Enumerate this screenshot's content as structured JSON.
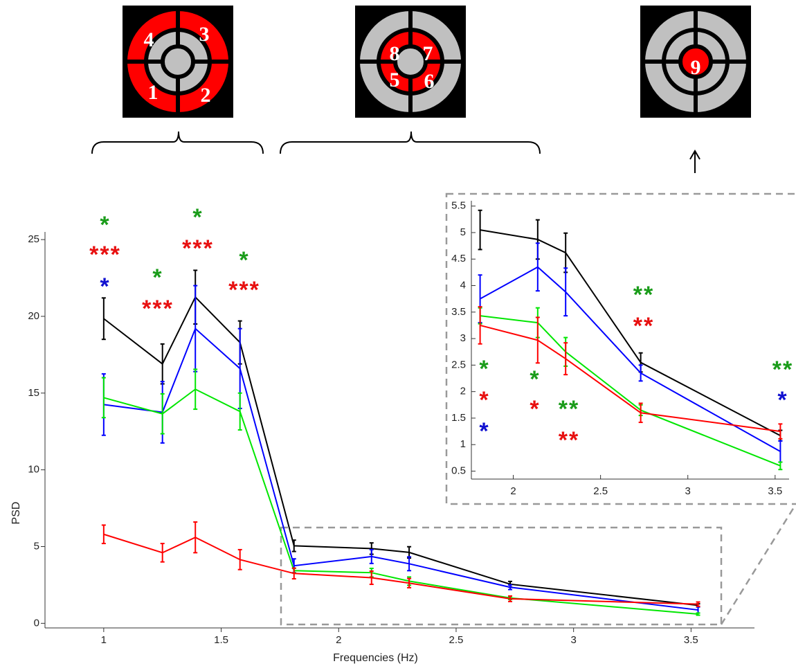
{
  "panels": [
    {
      "labels": [
        "4",
        "3",
        "1",
        "2"
      ]
    },
    {
      "labels": [
        "8",
        "7",
        "5",
        "6"
      ]
    },
    {
      "labels": [
        "9"
      ]
    }
  ],
  "chart_data": [
    {
      "type": "line",
      "xlabel": "Frequencies (Hz)",
      "ylabel": "PSD",
      "x": [
        1,
        1.25,
        1.39,
        1.58,
        1.81,
        2.14,
        2.3,
        2.73,
        3.53
      ],
      "xlim": [
        0.75,
        3.77
      ],
      "xticks": [
        1,
        1.5,
        2,
        2.5,
        3,
        3.5
      ],
      "ylim": [
        -0.3,
        25.5
      ],
      "yticks": [
        0,
        5,
        10,
        15,
        20,
        25
      ],
      "series": [
        {
          "color": "#000000",
          "values": [
            19.85,
            16.9,
            21.25,
            18.3,
            5.05,
            4.87,
            4.62,
            2.55,
            1.17
          ],
          "errors": [
            1.35,
            1.3,
            1.75,
            1.4,
            0.37,
            0.37,
            0.37,
            0.18,
            0.1
          ]
        },
        {
          "color": "#0000ff",
          "values": [
            14.25,
            13.75,
            19.2,
            16.6,
            3.75,
            4.35,
            3.88,
            2.35,
            0.87
          ],
          "errors": [
            2.0,
            2.0,
            2.8,
            2.6,
            0.45,
            0.45,
            0.45,
            0.15,
            0.2
          ]
        },
        {
          "color": "#00e600",
          "values": [
            14.7,
            13.65,
            15.25,
            13.8,
            3.43,
            3.3,
            2.75,
            1.65,
            0.6
          ],
          "errors": [
            1.3,
            1.3,
            1.3,
            1.2,
            0.15,
            0.28,
            0.27,
            0.1,
            0.07
          ]
        },
        {
          "color": "#ff0000",
          "values": [
            5.8,
            4.6,
            5.6,
            4.15,
            3.25,
            2.97,
            2.62,
            1.6,
            1.25
          ],
          "errors": [
            0.6,
            0.6,
            1.0,
            0.65,
            0.35,
            0.43,
            0.3,
            0.18,
            0.14
          ]
        }
      ],
      "annotations": [
        {
          "text": "*",
          "color": "#1a9c1a"
        },
        {
          "text": "***",
          "color": "#e81010"
        },
        {
          "text": "*",
          "color": "#1010d0"
        },
        {
          "text": "*",
          "color": "#1a9c1a"
        },
        {
          "text": "***",
          "color": "#e81010"
        },
        {
          "text": "*",
          "color": "#1a9c1a"
        },
        {
          "text": "***",
          "color": "#e81010"
        },
        {
          "text": "*",
          "color": "#1a9c1a"
        },
        {
          "text": "***",
          "color": "#e81010"
        }
      ]
    },
    {
      "type": "inset",
      "xlim": [
        1.76,
        3.58
      ],
      "xticks": [
        2,
        2.5,
        3,
        3.5
      ],
      "ylim": [
        0.35,
        5.6
      ],
      "yticks": [
        0.5,
        1,
        1.5,
        2,
        2.5,
        3,
        3.5,
        4,
        4.5,
        5,
        5.5
      ],
      "annotations": [
        {
          "text": "*",
          "color": "#1a9c1a"
        },
        {
          "text": "*",
          "color": "#e81010"
        },
        {
          "text": "*",
          "color": "#1010d0"
        },
        {
          "text": "*",
          "color": "#1a9c1a"
        },
        {
          "text": "*",
          "color": "#e81010"
        },
        {
          "text": "**",
          "color": "#1a9c1a"
        },
        {
          "text": "**",
          "color": "#e81010"
        },
        {
          "text": "**",
          "color": "#1a9c1a"
        },
        {
          "text": "**",
          "color": "#e81010"
        },
        {
          "text": "**",
          "color": "#1a9c1a"
        },
        {
          "text": "*",
          "color": "#1010d0"
        }
      ]
    }
  ]
}
